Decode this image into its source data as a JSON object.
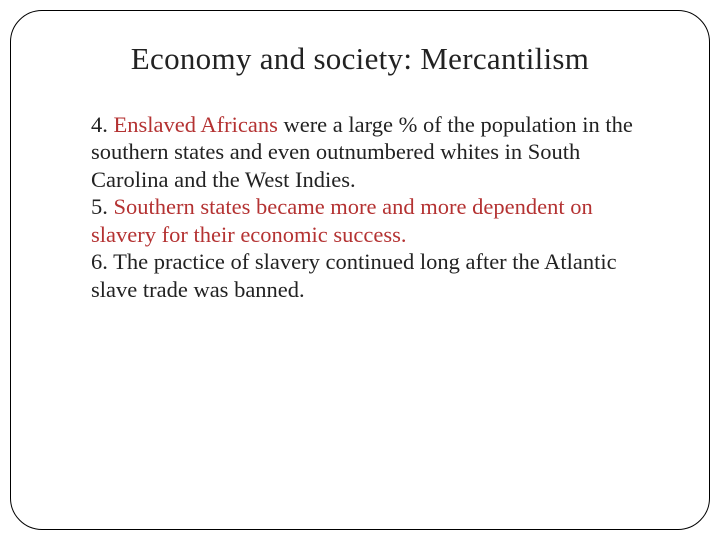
{
  "slide": {
    "title": "Economy and society: Mercantilism",
    "items": [
      {
        "num": "4. ",
        "lead": "Enslaved Africans",
        "rest": " were a large % of the population in the southern states and even outnumbered whites in South Carolina and the West Indies."
      },
      {
        "num": "5. ",
        "lead": "",
        "restRed": "Southern states became more and more dependent on slavery for their economic success.",
        "rest": ""
      },
      {
        "num": "6. ",
        "lead": "",
        "rest": "The practice of slavery continued long after the Atlantic slave trade was banned."
      }
    ]
  },
  "colors": {
    "text": "#222222",
    "accent": "#b43232",
    "border": "#000000",
    "background": "#ffffff"
  },
  "typography": {
    "title_fontsize": 31,
    "body_fontsize": 22.5,
    "font_family": "Georgia"
  }
}
